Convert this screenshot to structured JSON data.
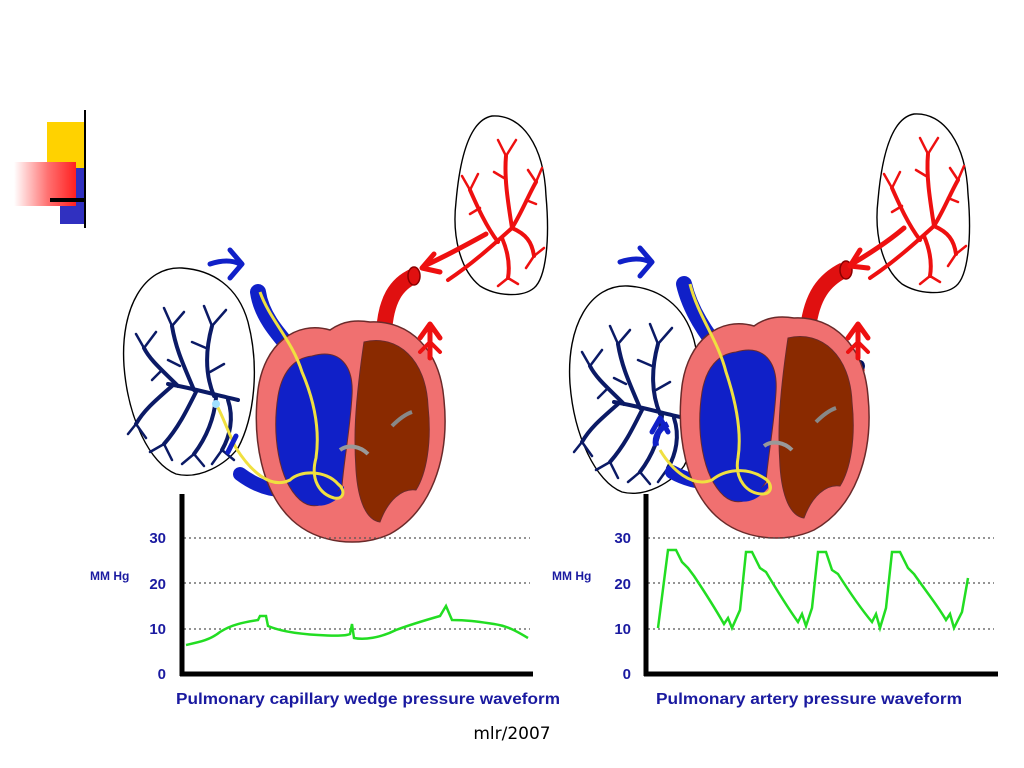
{
  "left_panel": {
    "unit_label": "MM Hg",
    "ticks": [
      "30",
      "20",
      "10",
      "0"
    ],
    "caption": "Pulmonary capillary wedge pressure waveform"
  },
  "right_panel": {
    "unit_label": "MM Hg",
    "ticks": [
      "30",
      "20",
      "10",
      "0"
    ],
    "caption": "Pulmonary artery pressure waveform"
  },
  "footer": {
    "text": "mlr/2007"
  },
  "colors": {
    "axis_label": "#1a1aa0",
    "waveform": "#22dd22",
    "venous_blue": "#1020c8",
    "artery_red": "#e01010",
    "heart_pink": "#f07070",
    "heart_brown": "#8a2a00",
    "catheter": "#f0e040",
    "accent_yellow": "#ffd200",
    "accent_blue": "#3030c0"
  },
  "icons": [
    "heart-diagram",
    "lung-icon",
    "flow-arrow-icon",
    "catheter"
  ]
}
